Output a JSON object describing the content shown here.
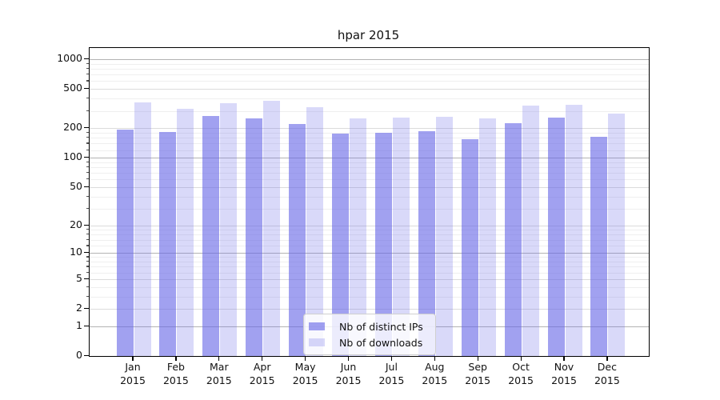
{
  "title": "hpar 2015",
  "chart_data": {
    "type": "bar",
    "title": "hpar 2015",
    "categories": [
      "Jan",
      "Feb",
      "Mar",
      "Apr",
      "May",
      "Jun",
      "Jul",
      "Aug",
      "Sep",
      "Oct",
      "Nov",
      "Dec"
    ],
    "x_year_label": "2015",
    "series": [
      {
        "name": "Nb of distinct IPs",
        "color": "rgba(102, 102, 230, 0.61)",
        "values": [
          194,
          182,
          266,
          250,
          221,
          177,
          178,
          188,
          154,
          226,
          255,
          164
        ]
      },
      {
        "name": "Nb of downloads",
        "color": "rgba(102, 102, 230, 0.25)",
        "values": [
          368,
          315,
          361,
          380,
          329,
          253,
          258,
          261,
          251,
          340,
          348,
          284
        ]
      }
    ],
    "xlabel": "",
    "ylabel": "",
    "scale": "log1p",
    "ylim": [
      0,
      1300
    ],
    "y_ticks": [
      0,
      1,
      2,
      5,
      10,
      20,
      50,
      100,
      200,
      500,
      1000
    ],
    "minor_gridlines": [
      3,
      4,
      6,
      7,
      8,
      9,
      12,
      14,
      16,
      18,
      30,
      40,
      60,
      70,
      80,
      90,
      120,
      140,
      160,
      180,
      300,
      400,
      600,
      700,
      800,
      900
    ],
    "grid": "on",
    "legend_position": "bottom-center",
    "colors": {
      "grid_decade": "#b3b3b3",
      "grid_labeled": "#dbdbdb",
      "grid_minor": "#efefef",
      "spine": "#000000"
    }
  }
}
